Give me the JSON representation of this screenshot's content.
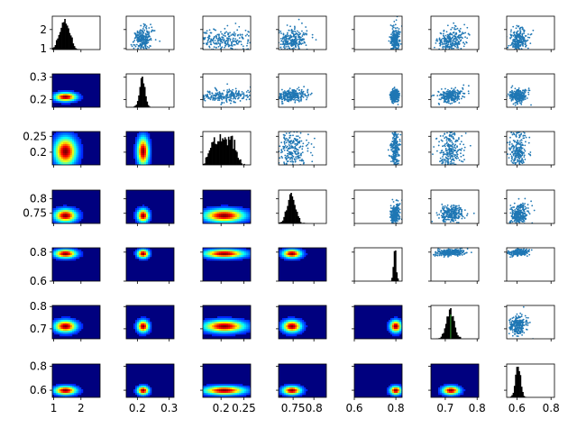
{
  "chart_data": {
    "type": "pair-plot-matrix",
    "description_layout": "7x7 grid: diagonal = histograms (black), upper triangle = scatter plots (blue points), lower triangle = 2D density heatmaps (jet colormap)",
    "variables": [
      {
        "id": "v1",
        "xticks": [
          1,
          2
        ],
        "xlim": [
          0.95,
          2.7
        ],
        "yticks": [
          1,
          2
        ],
        "ylim": [
          0.95,
          2.7
        ],
        "center": 1.4,
        "spread": 0.18
      },
      {
        "id": "v2",
        "xticks": [
          0.2,
          0.3
        ],
        "xlim": [
          0.165,
          0.315
        ],
        "yticks": [
          0.2,
          0.3
        ],
        "ylim": [
          0.165,
          0.315
        ],
        "center": 0.215,
        "spread": 0.008
      },
      {
        "id": "v3",
        "xticks": [
          0.2,
          0.25
        ],
        "xlim": [
          0.16,
          0.265
        ],
        "yticks": [
          0.2,
          0.25
        ],
        "ylim": [
          0.16,
          0.265
        ],
        "center": 0.205,
        "spread": 0.02
      },
      {
        "id": "v4",
        "xticks": [
          0.75,
          0.8
        ],
        "xlim": [
          0.715,
          0.83
        ],
        "yticks": [
          0.75,
          0.8
        ],
        "ylim": [
          0.715,
          0.83
        ],
        "center": 0.745,
        "spread": 0.01
      },
      {
        "id": "v5",
        "xticks": [
          0.6,
          0.8
        ],
        "xlim": [
          0.6,
          0.83
        ],
        "yticks": [
          0.6,
          0.8
        ],
        "ylim": [
          0.6,
          0.83
        ],
        "center": 0.795,
        "spread": 0.006
      },
      {
        "id": "v6",
        "xticks": [
          0.7,
          0.8
        ],
        "xlim": [
          0.655,
          0.805
        ],
        "yticks": [
          0.7,
          0.8
        ],
        "ylim": [
          0.655,
          0.805
        ],
        "center": 0.715,
        "spread": 0.012
      },
      {
        "id": "v7",
        "xticks": [
          0.6,
          0.8
        ],
        "xlim": [
          0.54,
          0.82
        ],
        "yticks": [
          0.6,
          0.8
        ],
        "ylim": [
          0.54,
          0.82
        ],
        "center": 0.605,
        "spread": 0.015
      }
    ],
    "diagonal": "histogram",
    "upper": "scatter",
    "lower": "kde-heatmap",
    "colors": {
      "hist": "#000000",
      "scatter": "#1f77b4",
      "heat_low": "#00007f",
      "heat_high": "#7f0000",
      "hist_line": "#2ca02c"
    }
  }
}
